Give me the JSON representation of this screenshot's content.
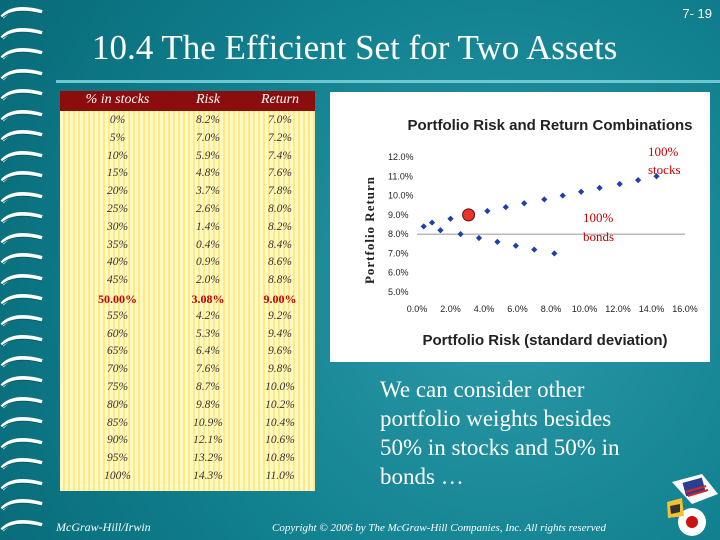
{
  "slide_number": "7- 19",
  "title": "10.4 The Efficient Set for Two Assets",
  "table": {
    "headers": [
      "% in stocks",
      "Risk",
      "Return"
    ],
    "rows": [
      [
        "0%",
        "8.2%",
        "7.0%"
      ],
      [
        "5%",
        "7.0%",
        "7.2%"
      ],
      [
        "10%",
        "5.9%",
        "7.4%"
      ],
      [
        "15%",
        "4.8%",
        "7.6%"
      ],
      [
        "20%",
        "3.7%",
        "7.8%"
      ],
      [
        "25%",
        "2.6%",
        "8.0%"
      ],
      [
        "30%",
        "1.4%",
        "8.2%"
      ],
      [
        "35%",
        "0.4%",
        "8.4%"
      ],
      [
        "40%",
        "0.9%",
        "8.6%"
      ],
      [
        "45%",
        "2.0%",
        "8.8%"
      ],
      [
        "50.00%",
        "3.08%",
        "9.00%"
      ],
      [
        "55%",
        "4.2%",
        "9.2%"
      ],
      [
        "60%",
        "5.3%",
        "9.4%"
      ],
      [
        "65%",
        "6.4%",
        "9.6%"
      ],
      [
        "70%",
        "7.6%",
        "9.8%"
      ],
      [
        "75%",
        "8.7%",
        "10.0%"
      ],
      [
        "80%",
        "9.8%",
        "10.2%"
      ],
      [
        "85%",
        "10.9%",
        "10.4%"
      ],
      [
        "90%",
        "12.1%",
        "10.6%"
      ],
      [
        "95%",
        "13.2%",
        "10.8%"
      ],
      [
        "100%",
        "14.3%",
        "11.0%"
      ]
    ],
    "highlight_row": 10
  },
  "chart_data": {
    "type": "scatter",
    "title": "Portfolio Risk and Return Combinations",
    "xlabel": "Portfolio Risk (standard deviation)",
    "ylabel": "Portfolio Return",
    "xlim": [
      0,
      16
    ],
    "ylim": [
      5,
      12
    ],
    "x_ticks": [
      "0.0%",
      "2.0%",
      "4.0%",
      "6.0%",
      "8.0%",
      "10.0%",
      "12.0%",
      "14.0%",
      "16.0%"
    ],
    "y_ticks": [
      "5.0%",
      "6.0%",
      "7.0%",
      "8.0%",
      "9.0%",
      "10.0%",
      "11.0%",
      "12.0%"
    ],
    "grid": false,
    "points": [
      {
        "x": 8.2,
        "y": 7.0
      },
      {
        "x": 7.0,
        "y": 7.2
      },
      {
        "x": 5.9,
        "y": 7.4
      },
      {
        "x": 4.8,
        "y": 7.6
      },
      {
        "x": 3.7,
        "y": 7.8
      },
      {
        "x": 2.6,
        "y": 8.0
      },
      {
        "x": 1.4,
        "y": 8.2
      },
      {
        "x": 0.4,
        "y": 8.4
      },
      {
        "x": 0.9,
        "y": 8.6
      },
      {
        "x": 2.0,
        "y": 8.8
      },
      {
        "x": 3.08,
        "y": 9.0
      },
      {
        "x": 4.2,
        "y": 9.2
      },
      {
        "x": 5.3,
        "y": 9.4
      },
      {
        "x": 6.4,
        "y": 9.6
      },
      {
        "x": 7.6,
        "y": 9.8
      },
      {
        "x": 8.7,
        "y": 10.0
      },
      {
        "x": 9.8,
        "y": 10.2
      },
      {
        "x": 10.9,
        "y": 10.4
      },
      {
        "x": 12.1,
        "y": 10.6
      },
      {
        "x": 13.2,
        "y": 10.8
      },
      {
        "x": 14.3,
        "y": 11.0
      }
    ],
    "highlight_point": {
      "x": 3.08,
      "y": 9.0
    },
    "annotations": [
      {
        "text": "100%\nstocks",
        "x": 14.3,
        "y": 11.0
      },
      {
        "text": "100%\nbonds",
        "x": 8.2,
        "y": 7.0
      }
    ]
  },
  "body_text": "We can consider other portfolio weights besides 50% in stocks and 50% in bonds …",
  "footer": {
    "left": "McGraw-Hill/Irwin",
    "right": "Copyright © 2006 by The McGraw-Hill Companies, Inc. All rights reserved"
  },
  "colors": {
    "background": "#0b7b8c",
    "table_header": "#8c0d0d",
    "highlight_text": "#c40000",
    "marker": "#1f3fae",
    "highlight_marker": "#e8342a",
    "annotation": "#c40000"
  }
}
